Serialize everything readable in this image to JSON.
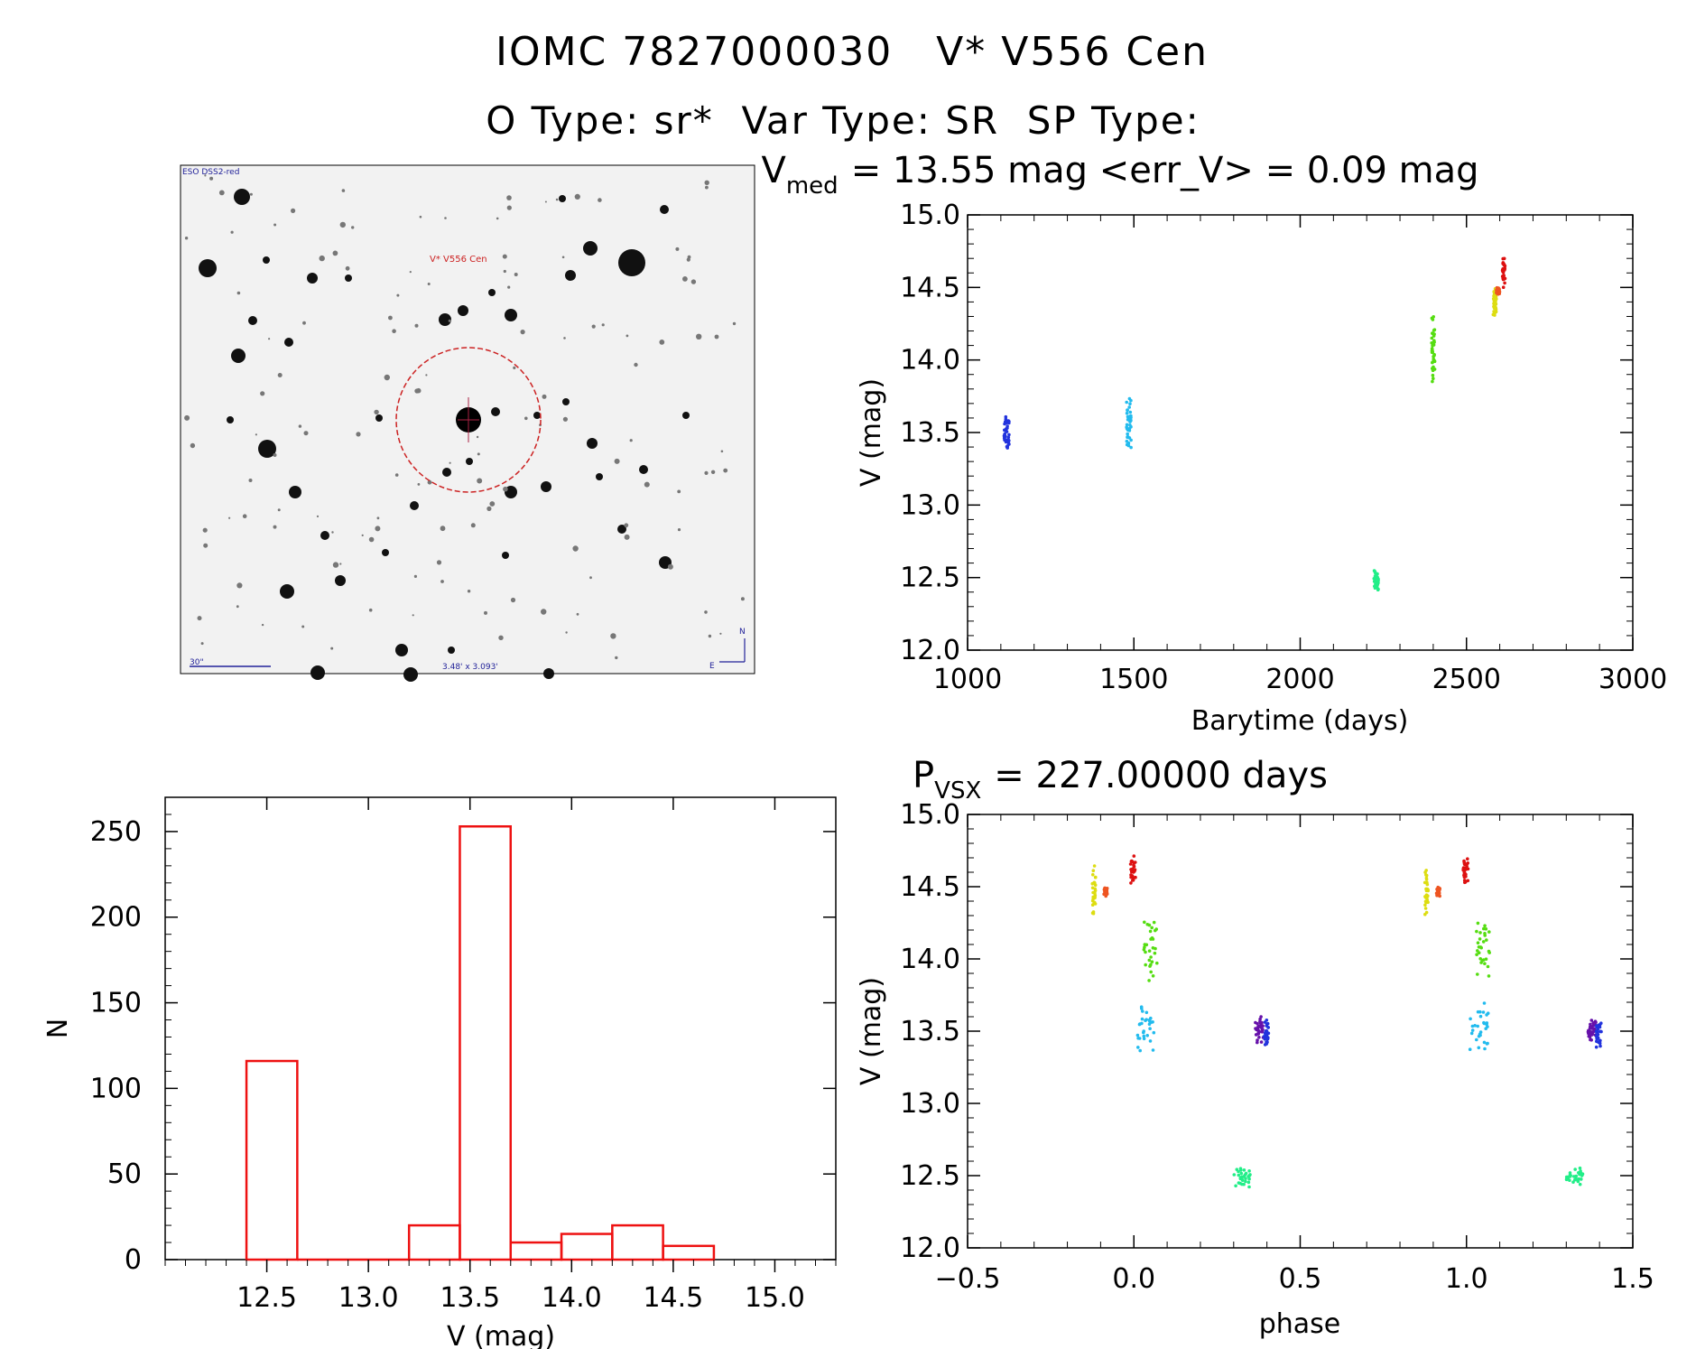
{
  "header": {
    "title": "IOMC 7827000030   V* V556 Cen",
    "subtitle": "O Type: sr*  Var Type: SR  SP Type:"
  },
  "finder": {
    "survey_label": "ESO DSS2-red",
    "target_label": "V* V556 Cen",
    "scale_label": "30\"",
    "size_label": "3.48' x 3.093'",
    "north_label": "N",
    "east_label": "E"
  },
  "lightcurve": {
    "title_main": "V",
    "title_sub": "med",
    "title_rest": "= 13.55 mag <err_V> = 0.09 mag",
    "xlabel": "Barytime (days)",
    "ylabel": "V (mag)"
  },
  "phaseplot": {
    "title_main": "P",
    "title_sub": "VSX",
    "title_rest": "= 227.00000 days",
    "xlabel": "phase",
    "ylabel": "V (mag)"
  },
  "histogram": {
    "xlabel": "V (mag)",
    "ylabel": "N"
  },
  "colors": {
    "blue": "#2233dd",
    "cyan": "#22bbee",
    "green_teal": "#22ee88",
    "green": "#55dd11",
    "yellow": "#dddd11",
    "orange": "#ee5522",
    "red": "#dd1111",
    "purple": "#6611aa",
    "hist": "#ee1111",
    "finder_circle": "#cc2222",
    "finder_text_blue": "#222299"
  },
  "chart_data": [
    {
      "type": "scatter",
      "name": "lightcurve",
      "xlim": [
        1000,
        3000
      ],
      "ylim": [
        15.0,
        12.0
      ],
      "xticks": [
        "1000",
        "1500",
        "2000",
        "2500",
        "3000"
      ],
      "yticks": [
        "12.0",
        "12.5",
        "13.0",
        "13.5",
        "14.0",
        "14.5",
        "15.0"
      ],
      "xtick_values": [
        1000,
        1500,
        2000,
        2500,
        3000
      ],
      "ytick_values": [
        12.0,
        12.5,
        13.0,
        13.5,
        14.0,
        14.5,
        15.0
      ],
      "clusters": [
        {
          "color": "blue",
          "x": [
            1110,
            1125
          ],
          "y": [
            13.37,
            13.62
          ]
        },
        {
          "color": "cyan",
          "x": [
            1478,
            1492
          ],
          "y": [
            13.35,
            13.75
          ]
        },
        {
          "color": "green_teal",
          "x": [
            2222,
            2235
          ],
          "y": [
            12.4,
            12.56
          ]
        },
        {
          "color": "green",
          "x": [
            2395,
            2405
          ],
          "y": [
            13.85,
            14.32
          ]
        },
        {
          "color": "yellow",
          "x": [
            2580,
            2590
          ],
          "y": [
            14.28,
            14.5
          ]
        },
        {
          "color": "orange",
          "x": [
            2590,
            2600
          ],
          "y": [
            14.45,
            14.5
          ]
        },
        {
          "color": "red",
          "x": [
            2608,
            2616
          ],
          "y": [
            14.5,
            14.72
          ]
        }
      ]
    },
    {
      "type": "scatter",
      "name": "phase",
      "xlim": [
        -0.5,
        1.5
      ],
      "ylim": [
        15.0,
        12.0
      ],
      "xticks": [
        "−0.5",
        "0.0",
        "0.5",
        "1.0",
        "1.5"
      ],
      "yticks": [
        "12.0",
        "12.5",
        "13.0",
        "13.5",
        "14.0",
        "14.5",
        "15.0"
      ],
      "xtick_values": [
        -0.5,
        0.0,
        0.5,
        1.0,
        1.5
      ],
      "ytick_values": [
        12.0,
        12.5,
        13.0,
        13.5,
        14.0,
        14.5,
        15.0
      ],
      "clusters": [
        {
          "color": "green_teal",
          "x": [
            0.3,
            0.35
          ],
          "y": [
            12.42,
            12.56
          ]
        },
        {
          "color": "green_teal",
          "x": [
            1.3,
            1.35
          ],
          "y": [
            12.42,
            12.56
          ]
        },
        {
          "color": "purple",
          "x": [
            0.365,
            0.39
          ],
          "y": [
            13.42,
            13.6
          ]
        },
        {
          "color": "blue",
          "x": [
            0.39,
            0.405
          ],
          "y": [
            13.37,
            13.58
          ]
        },
        {
          "color": "purple",
          "x": [
            1.365,
            1.39
          ],
          "y": [
            13.42,
            13.6
          ]
        },
        {
          "color": "blue",
          "x": [
            1.39,
            1.405
          ],
          "y": [
            13.37,
            13.58
          ]
        },
        {
          "color": "cyan",
          "x": [
            0.01,
            0.065
          ],
          "y": [
            13.35,
            13.7
          ]
        },
        {
          "color": "cyan",
          "x": [
            1.01,
            1.065
          ],
          "y": [
            13.35,
            13.7
          ]
        },
        {
          "color": "green",
          "x": [
            0.03,
            0.07
          ],
          "y": [
            13.85,
            14.3
          ]
        },
        {
          "color": "green",
          "x": [
            1.03,
            1.07
          ],
          "y": [
            13.85,
            14.3
          ]
        },
        {
          "color": "yellow",
          "x": [
            -0.125,
            -0.115
          ],
          "y": [
            14.28,
            14.65
          ]
        },
        {
          "color": "yellow",
          "x": [
            0.875,
            0.885
          ],
          "y": [
            14.28,
            14.65
          ]
        },
        {
          "color": "orange",
          "x": [
            -0.09,
            -0.08
          ],
          "y": [
            14.43,
            14.5
          ]
        },
        {
          "color": "orange",
          "x": [
            0.91,
            0.92
          ],
          "y": [
            14.43,
            14.5
          ]
        },
        {
          "color": "red",
          "x": [
            -0.01,
            0.005
          ],
          "y": [
            14.5,
            14.72
          ]
        },
        {
          "color": "red",
          "x": [
            0.99,
            1.005
          ],
          "y": [
            14.5,
            14.72
          ]
        }
      ]
    },
    {
      "type": "bar",
      "name": "histogram",
      "xlim": [
        12.0,
        15.3
      ],
      "ylim": [
        0,
        270
      ],
      "xticks": [
        "12.5",
        "13.0",
        "13.5",
        "14.0",
        "14.5",
        "15.0"
      ],
      "yticks": [
        "0",
        "50",
        "100",
        "150",
        "200",
        "250"
      ],
      "xtick_values": [
        12.5,
        13.0,
        13.5,
        14.0,
        14.5,
        15.0
      ],
      "ytick_values": [
        0,
        50,
        100,
        150,
        200,
        250
      ],
      "bins": [
        {
          "x0": 12.4,
          "x1": 12.65,
          "count": 116
        },
        {
          "x0": 12.65,
          "x1": 12.9,
          "count": 0
        },
        {
          "x0": 12.9,
          "x1": 13.2,
          "count": 0
        },
        {
          "x0": 13.2,
          "x1": 13.45,
          "count": 20
        },
        {
          "x0": 13.45,
          "x1": 13.7,
          "count": 253
        },
        {
          "x0": 13.7,
          "x1": 13.95,
          "count": 10
        },
        {
          "x0": 13.95,
          "x1": 14.2,
          "count": 15
        },
        {
          "x0": 14.2,
          "x1": 14.45,
          "count": 20
        },
        {
          "x0": 14.45,
          "x1": 14.7,
          "count": 8
        }
      ]
    }
  ]
}
